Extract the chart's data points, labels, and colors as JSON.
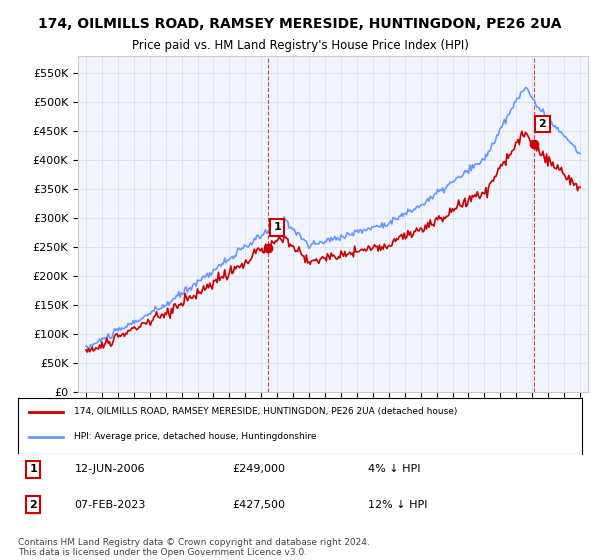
{
  "title": "174, OILMILLS ROAD, RAMSEY MERESIDE, HUNTINGDON, PE26 2UA",
  "subtitle": "Price paid vs. HM Land Registry's House Price Index (HPI)",
  "ylabel_ticks": [
    "£0",
    "£50K",
    "£100K",
    "£150K",
    "£200K",
    "£250K",
    "£300K",
    "£350K",
    "£400K",
    "£450K",
    "£500K",
    "£550K"
  ],
  "ytick_values": [
    0,
    50000,
    100000,
    150000,
    200000,
    250000,
    300000,
    350000,
    400000,
    450000,
    500000,
    550000
  ],
  "ylim": [
    0,
    580000
  ],
  "hpi_color": "#6699ff",
  "price_color": "#cc0000",
  "marker1_date": "2006.45",
  "marker1_price": 249000,
  "marker2_date": "2023.1",
  "marker2_price": 427500,
  "annotation1": "12-JUN-2006    £249,000    4% ↓ HPI",
  "annotation2": "07-FEB-2023    £427,500    12% ↓ HPI",
  "legend_line1": "174, OILMILLS ROAD, RAMSEY MERESIDE, HUNTINGDON, PE26 2UA (detached house)",
  "legend_line2": "HPI: Average price, detached house, Huntingdonshire",
  "footer": "Contains HM Land Registry data © Crown copyright and database right 2024.\nThis data is licensed under the Open Government Licence v3.0.",
  "background_color": "#ffffff",
  "grid_color": "#dddddd"
}
